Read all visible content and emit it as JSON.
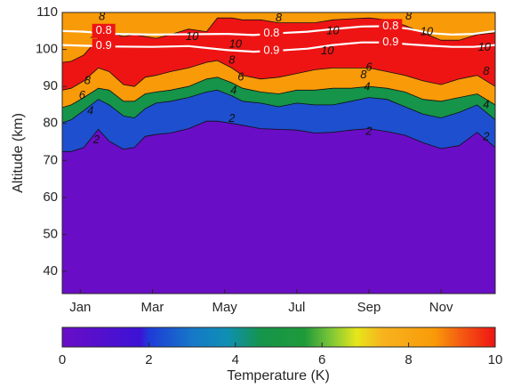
{
  "chart_data": {
    "type": "heatmap",
    "title": "",
    "xlabel": "",
    "ylabel": "Altitude (km)",
    "xlim": [
      0,
      12
    ],
    "ylim": [
      34,
      110
    ],
    "x_ticks": [
      {
        "value": 0.5,
        "label": "Jan"
      },
      {
        "value": 2.5,
        "label": "Mar"
      },
      {
        "value": 4.5,
        "label": "May"
      },
      {
        "value": 6.5,
        "label": "Jul"
      },
      {
        "value": 8.5,
        "label": "Sep"
      },
      {
        "value": 10.5,
        "label": "Nov"
      }
    ],
    "y_ticks": [
      40,
      50,
      60,
      70,
      80,
      90,
      100,
      110
    ],
    "colorbar": {
      "label": "Temperature (K)",
      "min": 0,
      "max": 10,
      "ticks": [
        0,
        2,
        4,
        6,
        8,
        10
      ],
      "colormap": "parula-jet"
    },
    "contour_levels": [
      2,
      4,
      6,
      8,
      10
    ],
    "contours": {
      "x": [
        0,
        0.25,
        0.6,
        1.0,
        1.3,
        1.7,
        2.0,
        2.3,
        2.6,
        3.0,
        3.5,
        4.0,
        4.3,
        4.7,
        5.0,
        5.5,
        6.0,
        6.5,
        7.0,
        7.5,
        8.0,
        8.5,
        9.0,
        9.5,
        10.0,
        10.5,
        11.0,
        11.5,
        12.0
      ],
      "boundaries": [
        {
          "level": 2,
          "y": [
            72.4,
            72.4,
            73.5,
            78.4,
            75.2,
            73.0,
            73.5,
            76.5,
            77.0,
            77.4,
            78.6,
            80.6,
            80.6,
            80.0,
            79.5,
            78.6,
            78.4,
            78.2,
            77.4,
            77.6,
            78.2,
            78.6,
            77.8,
            76.8,
            74.8,
            73.2,
            74.0,
            77.6,
            73.5
          ]
        },
        {
          "level": 4,
          "y": [
            80.2,
            81.0,
            83.5,
            86.5,
            85.0,
            82.0,
            81.5,
            84.0,
            85.5,
            86.0,
            87.0,
            88.5,
            89.0,
            87.5,
            86.0,
            85.5,
            84.5,
            85.5,
            85.0,
            85.0,
            86.0,
            87.0,
            86.5,
            84.5,
            82.5,
            81.5,
            83.0,
            85.0,
            81.0
          ]
        },
        {
          "level": 6,
          "y": [
            84.3,
            85.0,
            87.0,
            89.5,
            89.0,
            86.0,
            86.0,
            88.0,
            88.5,
            89.0,
            90.0,
            92.0,
            92.5,
            91.0,
            89.5,
            88.5,
            88.0,
            89.0,
            89.0,
            89.5,
            89.5,
            90.0,
            89.5,
            88.5,
            86.5,
            86.0,
            87.0,
            88.0,
            85.0
          ]
        },
        {
          "level": 8,
          "y": [
            89.0,
            89.5,
            91.5,
            95.0,
            94.0,
            90.5,
            90.0,
            92.5,
            93.0,
            94.0,
            95.0,
            96.5,
            97.0,
            95.0,
            93.0,
            92.0,
            92.5,
            93.5,
            94.5,
            95.0,
            95.0,
            95.0,
            94.0,
            93.0,
            91.5,
            90.5,
            92.0,
            93.0,
            90.0
          ]
        },
        {
          "level": 10,
          "y": [
            96.5,
            96.8,
            98.5,
            103.0,
            104.5,
            103.5,
            104.0,
            103.5,
            103.0,
            104.0,
            105.5,
            104.8,
            108.5,
            108.5,
            108.0,
            108.0,
            107.2,
            107.2,
            107.2,
            108.0,
            108.3,
            108.5,
            108.0,
            106.5,
            104.5,
            102.5,
            102.5,
            104.0,
            104.5
          ]
        }
      ],
      "band_colors": [
        "#6a0dc6",
        "#1e4fcf",
        "#15944a",
        "#f99a08",
        "#ee1414"
      ],
      "top_color": "#f99a08"
    },
    "labels": [
      {
        "text": "2",
        "x": 0.95,
        "y": 75.5
      },
      {
        "text": "4",
        "x": 0.78,
        "y": 83.3
      },
      {
        "text": "6",
        "x": 0.55,
        "y": 87.5
      },
      {
        "text": "8",
        "x": 0.7,
        "y": 91.5
      },
      {
        "text": "10",
        "x": 0.95,
        "y": 104.0
      },
      {
        "text": "8",
        "x": 1.1,
        "y": 108.8
      },
      {
        "text": "10",
        "x": 3.6,
        "y": 103.4
      },
      {
        "text": "2",
        "x": 4.7,
        "y": 81.3
      },
      {
        "text": "4",
        "x": 4.75,
        "y": 88.8
      },
      {
        "text": "6",
        "x": 4.95,
        "y": 92.4
      },
      {
        "text": "8",
        "x": 4.7,
        "y": 97.0
      },
      {
        "text": "10",
        "x": 4.8,
        "y": 101.3
      },
      {
        "text": "8",
        "x": 6.0,
        "y": 108.4
      },
      {
        "text": "10",
        "x": 7.5,
        "y": 104.9
      },
      {
        "text": "10",
        "x": 7.35,
        "y": 99.5
      },
      {
        "text": "6",
        "x": 8.5,
        "y": 95.1
      },
      {
        "text": "8",
        "x": 8.35,
        "y": 93.0
      },
      {
        "text": "4",
        "x": 8.45,
        "y": 89.8
      },
      {
        "text": "2",
        "x": 8.5,
        "y": 77.8
      },
      {
        "text": "8",
        "x": 9.6,
        "y": 108.9
      },
      {
        "text": "10",
        "x": 10.1,
        "y": 104.7
      },
      {
        "text": "10",
        "x": 11.7,
        "y": 100.5
      },
      {
        "text": "8",
        "x": 11.75,
        "y": 94.0
      },
      {
        "text": "4",
        "x": 11.75,
        "y": 85.0
      },
      {
        "text": "2",
        "x": 11.75,
        "y": 76.3
      }
    ],
    "overlay_lines": [
      {
        "name": "0.8",
        "x": [
          0,
          0.6,
          1.4,
          2.5,
          3.5,
          4.6,
          5.3,
          6.0,
          6.8,
          7.5,
          8.3,
          9.0,
          9.6,
          10.2,
          10.8,
          11.4,
          12.0
        ],
        "y": [
          105.0,
          104.8,
          104.2,
          104.0,
          104.1,
          104.2,
          103.9,
          104.4,
          104.8,
          105.5,
          106.2,
          106.3,
          105.6,
          104.4,
          104.0,
          104.2,
          105.0
        ]
      },
      {
        "name": "0.9",
        "x": [
          0,
          0.6,
          1.4,
          2.5,
          3.5,
          4.6,
          5.3,
          6.0,
          6.8,
          7.5,
          8.3,
          9.0,
          9.6,
          10.2,
          10.8,
          11.4,
          12.0
        ],
        "y": [
          101.2,
          101.0,
          100.8,
          100.7,
          100.9,
          99.8,
          99.4,
          99.7,
          100.2,
          101.2,
          101.9,
          101.9,
          101.4,
          101.0,
          100.7,
          100.7,
          101.2
        ]
      }
    ],
    "overlay_labels": [
      {
        "text": "0.8",
        "x": 1.15,
        "y": 105.0
      },
      {
        "text": "0.9",
        "x": 1.15,
        "y": 101.0
      },
      {
        "text": "0.8",
        "x": 5.8,
        "y": 104.3
      },
      {
        "text": "0.9",
        "x": 5.8,
        "y": 99.7
      },
      {
        "text": "0.8",
        "x": 9.1,
        "y": 106.3
      },
      {
        "text": "0.9",
        "x": 9.1,
        "y": 101.9
      }
    ]
  }
}
